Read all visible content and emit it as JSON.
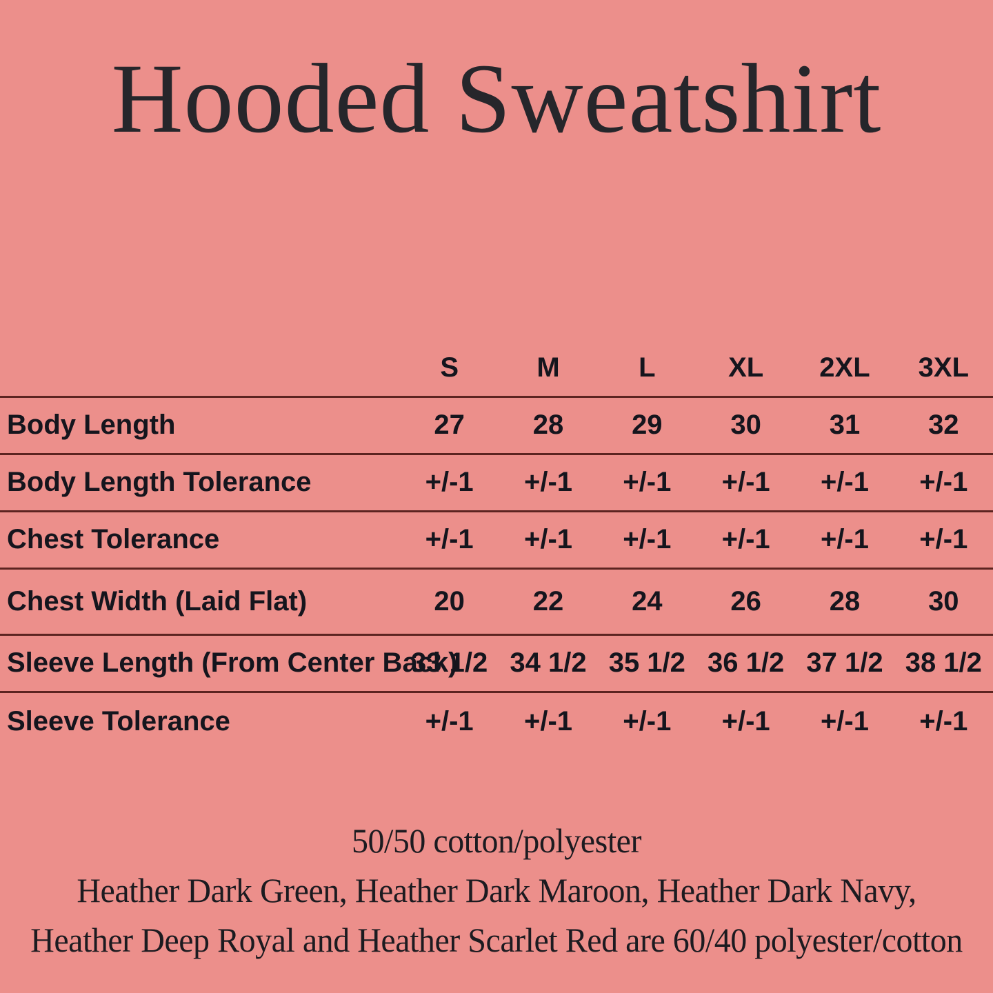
{
  "page": {
    "background_color": "#EC8F8B",
    "divider_color": "#5C2421",
    "title": "Hooded Sweatshirt"
  },
  "size_chart": {
    "columns": [
      "S",
      "M",
      "L",
      "XL",
      "2XL",
      "3XL"
    ],
    "rows": [
      {
        "label": "Body Length",
        "values": [
          "27",
          "28",
          "29",
          "30",
          "31",
          "32"
        ]
      },
      {
        "label": "Body Length Tolerance",
        "values": [
          "+/-1",
          "+/-1",
          "+/-1",
          "+/-1",
          "+/-1",
          "+/-1"
        ]
      },
      {
        "label": "Chest Tolerance",
        "values": [
          "+/-1",
          "+/-1",
          "+/-1",
          "+/-1",
          "+/-1",
          "+/-1"
        ]
      },
      {
        "label": "Chest Width (Laid Flat)",
        "values": [
          "20",
          "22",
          "24",
          "26",
          "28",
          "30"
        ]
      },
      {
        "label": "Sleeve Length (From Center Back)",
        "values": [
          "33 1/2",
          "34 1/2",
          "35 1/2",
          "36 1/2",
          "37 1/2",
          "38 1/2"
        ]
      },
      {
        "label": "Sleeve Tolerance",
        "values": [
          "+/-1",
          "+/-1",
          "+/-1",
          "+/-1",
          "+/-1",
          "+/-1"
        ]
      }
    ]
  },
  "footnote": {
    "lines": [
      "50/50 cotton/polyester",
      "Heather Dark Green, Heather Dark Maroon, Heather Dark Navy,",
      "Heather Deep Royal and Heather Scarlet Red are 60/40 polyester/cotton"
    ]
  }
}
